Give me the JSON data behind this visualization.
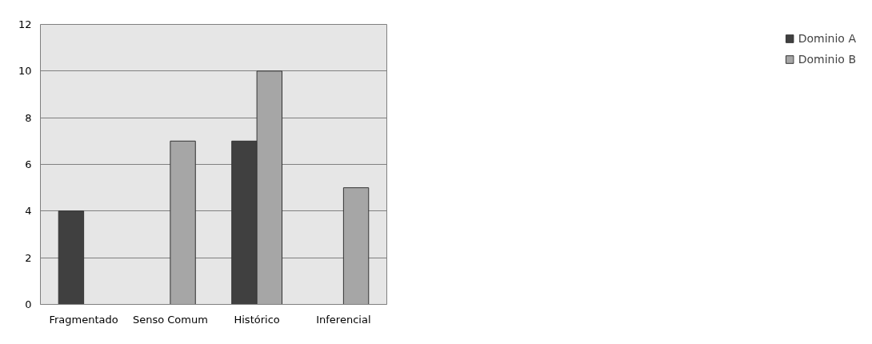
{
  "chart_data": {
    "type": "bar",
    "categories": [
      "Fragmentado",
      "Senso Comum",
      "Histórico",
      "Inferencial"
    ],
    "series": [
      {
        "name": "Dominio A",
        "color": "#404040",
        "values": [
          4,
          null,
          7,
          null
        ]
      },
      {
        "name": "Dominio B",
        "color": "#a6a6a6",
        "values": [
          null,
          7,
          10,
          5
        ]
      }
    ],
    "ylim": [
      0,
      12
    ],
    "yticks": [
      0,
      2,
      4,
      6,
      8,
      10,
      12
    ],
    "grid": "y",
    "legend": "right"
  }
}
